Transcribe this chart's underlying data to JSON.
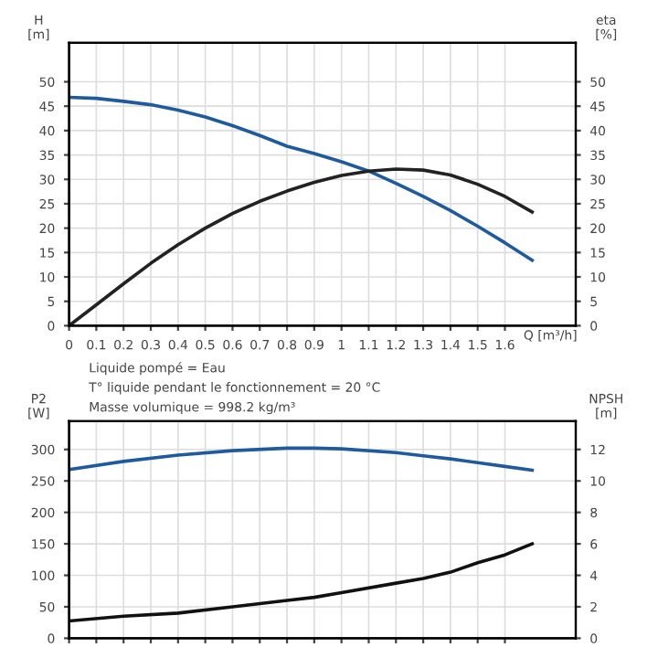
{
  "chart_data": [
    {
      "type": "line",
      "ylabel": "H\n[m]",
      "y2label": "eta\n[%]",
      "xlabel": "Q [m³/h]",
      "xlim": [
        0,
        1.86
      ],
      "xticks": [
        0,
        0.1,
        0.2,
        0.3,
        0.4,
        0.5,
        0.6,
        0.7,
        0.8,
        0.9,
        1,
        1.1,
        1.2,
        1.3,
        1.4,
        1.5,
        1.6
      ],
      "ylim": [
        0,
        58
      ],
      "yticks": [
        0,
        5,
        10,
        15,
        20,
        25,
        30,
        35,
        40,
        45,
        50
      ],
      "y2lim": [
        0,
        58
      ],
      "y2ticks": [
        0,
        5,
        10,
        15,
        20,
        25,
        30,
        35,
        40,
        45,
        50
      ],
      "grid": true,
      "x": [
        0,
        0.1,
        0.2,
        0.3,
        0.4,
        0.5,
        0.6,
        0.7,
        0.8,
        0.9,
        1.0,
        1.1,
        1.2,
        1.3,
        1.4,
        1.5,
        1.6,
        1.7
      ],
      "series": [
        {
          "color": "#1f5a9c",
          "values": [
            46.8,
            46.6,
            46.0,
            45.3,
            44.2,
            42.8,
            41.0,
            39.0,
            36.8,
            35.3,
            33.6,
            31.7,
            29.2,
            26.5,
            23.6,
            20.4,
            17.0,
            13.4
          ]
        },
        {
          "color": "#222222",
          "axis": "y2",
          "values": [
            0,
            4.3,
            8.6,
            12.8,
            16.6,
            20.0,
            23.0,
            25.5,
            27.6,
            29.4,
            30.8,
            31.7,
            32.1,
            31.9,
            30.9,
            29.0,
            26.5,
            23.3
          ]
        }
      ],
      "annotations": [
        "Liquide pompé = Eau",
        "T° liquide pendant le fonctionnement = 20 °C",
        "Masse volumique = 998.2 kg/m³"
      ]
    },
    {
      "type": "line",
      "ylabel": "P2\n[W]",
      "y2label": "NPSH\n[m]",
      "xlim": [
        0,
        1.86
      ],
      "xticks": [
        0,
        0.1,
        0.2,
        0.3,
        0.4,
        0.5,
        0.6,
        0.7,
        0.8,
        0.9,
        1,
        1.1,
        1.2,
        1.3,
        1.4,
        1.5,
        1.6
      ],
      "ylim": [
        0,
        345
      ],
      "yticks": [
        0,
        50,
        100,
        150,
        200,
        250,
        300
      ],
      "y2lim": [
        0,
        13.8
      ],
      "y2ticks": [
        0,
        2,
        4,
        6,
        8,
        10,
        12
      ],
      "grid": true,
      "tick_labels": "y",
      "x": [
        0,
        0.2,
        0.4,
        0.6,
        0.8,
        0.9,
        1.0,
        1.2,
        1.3,
        1.4,
        1.5,
        1.6,
        1.7
      ],
      "series": [
        {
          "color": "#1f5a9c",
          "values": [
            268,
            281,
            291,
            298,
            302,
            302,
            301,
            295,
            290,
            285,
            279,
            273,
            267
          ]
        },
        {
          "color": "#111111",
          "axis": "y2",
          "values": [
            1.1,
            1.4,
            1.6,
            2.0,
            2.4,
            2.6,
            2.9,
            3.5,
            3.8,
            4.2,
            4.8,
            5.3,
            6.0
          ]
        }
      ]
    }
  ]
}
